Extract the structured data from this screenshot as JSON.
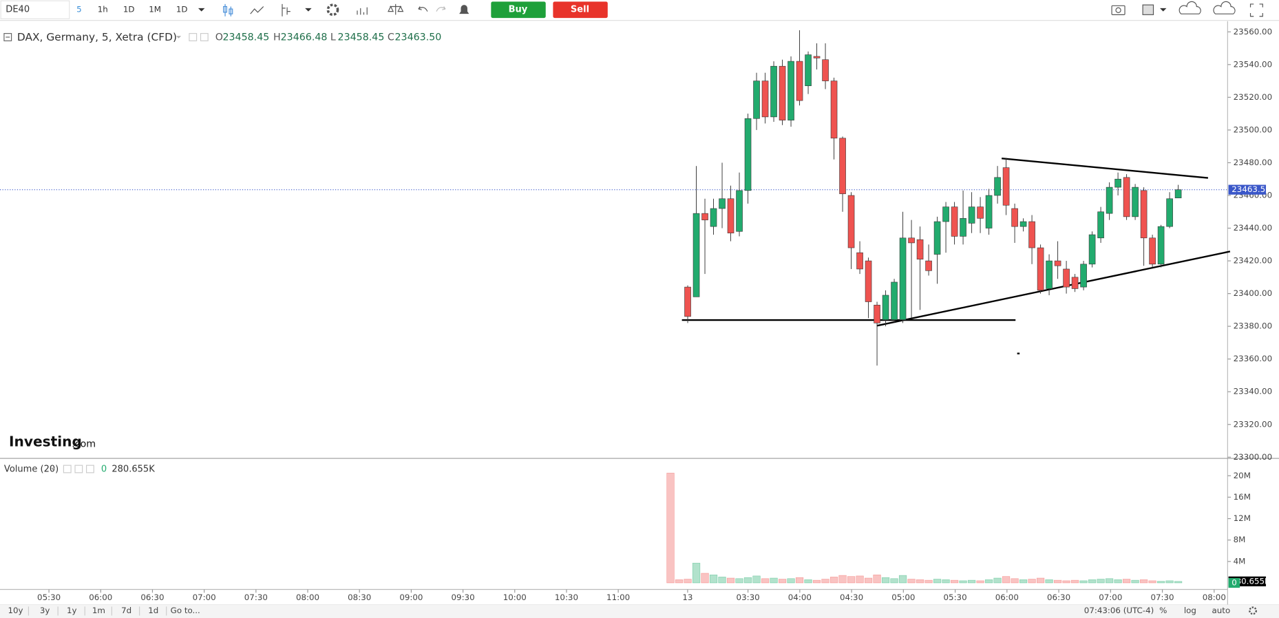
{
  "toolbar": {
    "symbol": "DE40",
    "intervals": [
      "5",
      "1h",
      "1D",
      "1M",
      "1D"
    ],
    "buy": "Buy",
    "sell": "Sell"
  },
  "logo": {
    "brand": "Investing",
    "suffix": ".com"
  },
  "chart_data": {
    "type": "candlestick",
    "title": "DAX, Germany, 5, Xetra (CFD)",
    "ohlc": [
      {
        "key": "O",
        "value": "23458.45"
      },
      {
        "key": "H",
        "value": "23466.48"
      },
      {
        "key": "L",
        "value": "23458.45"
      },
      {
        "key": "C",
        "value": "23463.50"
      }
    ],
    "open": [
      null,
      null,
      23404,
      23398,
      23449,
      23441,
      23452,
      23458,
      23438,
      23463,
      23507,
      23530,
      23508,
      23539,
      23506,
      23542,
      23527,
      23545,
      23543,
      23530,
      23495,
      23460,
      23425,
      23420,
      23393,
      23384,
      23384,
      23384,
      23434,
      23433,
      23420,
      23424,
      23444,
      23453,
      23435,
      23443,
      23453,
      23440,
      23460,
      23477,
      23452,
      23441,
      23444,
      23428,
      23403,
      23420,
      23415,
      23410,
      23404,
      23418,
      23434,
      23449,
      23465,
      23471,
      23447,
      23463,
      23434,
      23418,
      23441,
      23458.45
    ],
    "high": [
      null,
      null,
      23405,
      23478,
      23458,
      23458,
      23480,
      23466,
      23474,
      23510,
      23535,
      23535,
      23542,
      23543,
      23545,
      23561,
      23548,
      23553,
      23553,
      23532,
      23496,
      23462,
      23432,
      23422,
      23395,
      23402,
      23409,
      23450,
      23445,
      23441,
      23430,
      23447,
      23456,
      23456,
      23463,
      23462,
      23459,
      23464,
      23478,
      23483,
      23455,
      23446,
      23448,
      23430,
      23424,
      23432,
      23420,
      23412,
      23420,
      23438,
      23453,
      23468,
      23474,
      23473,
      23467,
      23465,
      23436,
      23442,
      23462,
      23466.48
    ],
    "low": [
      null,
      null,
      23382,
      23398,
      23412,
      23436,
      23440,
      23432,
      23435,
      23455,
      23500,
      23504,
      23505,
      23503,
      23502,
      23515,
      23522,
      23537,
      23525,
      23482,
      23450,
      23415,
      23412,
      23385,
      23356,
      23380,
      23382,
      23382,
      23385,
      23390,
      23411,
      23406,
      23425,
      23430,
      23430,
      23437,
      23437,
      23436,
      23455,
      23448,
      23431,
      23438,
      23418,
      23400,
      23399,
      23409,
      23400,
      23401,
      23402,
      23416,
      23431,
      23445,
      23460,
      23445,
      23445,
      23417,
      23416,
      23416,
      23440,
      23458.45
    ],
    "close": [
      null,
      null,
      23386,
      23449,
      23445,
      23452,
      23458,
      23437,
      23463,
      23507,
      23530,
      23508,
      23539,
      23506,
      23542,
      23518,
      23546,
      23544,
      23530,
      23495,
      23461,
      23428,
      23415,
      23395,
      23382,
      23399,
      23407,
      23434,
      23431,
      23421,
      23414,
      23444,
      23453,
      23435,
      23446,
      23453,
      23446,
      23460,
      23471,
      23454,
      23441,
      23444,
      23428,
      23402,
      23420,
      23417,
      23404,
      23403,
      23418,
      23436,
      23450,
      23465,
      23470,
      23447,
      23465,
      23434,
      23418,
      23441,
      23458,
      23463.5
    ],
    "up_color": "#22ab6e",
    "down_color": "#ef5350",
    "ylim": [
      23300,
      23564.5
    ],
    "yticks": [
      {
        "value": 23300,
        "label": "23300.00"
      },
      {
        "value": 23320,
        "label": "23320.00"
      },
      {
        "value": 23340,
        "label": "23340.00"
      },
      {
        "value": 23360,
        "label": "23360.00"
      },
      {
        "value": 23380,
        "label": "23380.00"
      },
      {
        "value": 23400,
        "label": "23400.00"
      },
      {
        "value": 23420,
        "label": "23420.00"
      },
      {
        "value": 23440,
        "label": "23440.00"
      },
      {
        "value": 23460,
        "label": "23460.00"
      },
      {
        "value": 23480,
        "label": "23480.00"
      },
      {
        "value": 23500,
        "label": "23500.00"
      },
      {
        "value": 23520,
        "label": "23520.00"
      },
      {
        "value": 23540,
        "label": "23540.00"
      },
      {
        "value": 23560,
        "label": "23560.00"
      }
    ],
    "last_price": {
      "value": 23463.5,
      "label": "23463.50"
    },
    "xticks": [
      "05:30",
      "06:00",
      "06:30",
      "07:00",
      "07:30",
      "08:00",
      "08:30",
      "09:00",
      "09:30",
      "10:00",
      "10:30",
      "11:00",
      "13",
      "03:30",
      "04:00",
      "04:30",
      "05:00",
      "05:30",
      "06:00",
      "06:30",
      "07:00",
      "07:30",
      "08:00"
    ],
    "volume": {
      "title": "Volume (20)",
      "last": "0",
      "last_label": "280.655K",
      "values": [
        20500000,
        600000,
        700000,
        3700000,
        1800000,
        1500000,
        1100000,
        900000,
        800000,
        1000000,
        1300000,
        800000,
        900000,
        700000,
        800000,
        1000000,
        600000,
        500000,
        700000,
        1100000,
        1400000,
        1200000,
        1300000,
        900000,
        1500000,
        1000000,
        800000,
        1400000,
        700000,
        600000,
        500000,
        700000,
        600000,
        500000,
        400000,
        500000,
        400000,
        600000,
        900000,
        1200000,
        800000,
        600000,
        700000,
        900000,
        600000,
        500000,
        400000,
        500000,
        400000,
        600000,
        700000,
        800000,
        600000,
        700000,
        500000,
        600000,
        400000,
        300000,
        400000,
        280655
      ],
      "ylim": [
        0,
        22400000
      ],
      "yticks": [
        {
          "value": 4000000,
          "label": "4M"
        },
        {
          "value": 8000000,
          "label": "8M"
        },
        {
          "value": 12000000,
          "label": "12M"
        },
        {
          "value": 16000000,
          "label": "16M"
        },
        {
          "value": 20000000,
          "label": "20M"
        }
      ]
    }
  },
  "footer": {
    "ranges": [
      "10y",
      "3y",
      "1y",
      "1m",
      "7d",
      "1d"
    ],
    "goto": "Go to...",
    "clock": "07:43:06 (UTC-4)",
    "options": [
      "%",
      "log",
      "auto"
    ]
  }
}
